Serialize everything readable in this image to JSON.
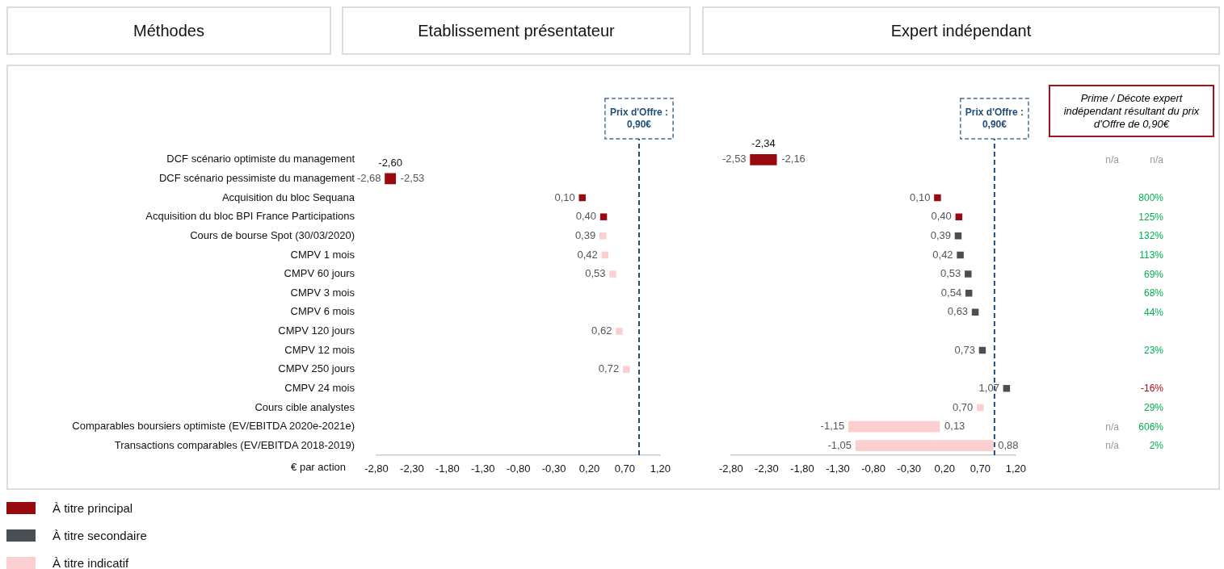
{
  "chart_data": [
    {
      "type": "bar",
      "orientation": "horizontal",
      "title": "Etablissement présentateur",
      "ylabel": "Méthodes",
      "xlabel": "€ par action",
      "legend": "bottom left",
      "categories": [
        "DCF scénario optimiste du management",
        "DCF scénario pessimiste du management",
        "Acquisition du bloc Sequana",
        "Acquisition du bloc BPI France Participations",
        "Cours de bourse Spot (30/03/2020)",
        "CMPV 1 mois",
        "CMPV 60 jours",
        "CMPV 3 mois",
        "CMPV 6 mois",
        "CMPV 120 jours",
        "CMPV 12 mois",
        "CMPV 250 jours",
        "CMPV 24 mois",
        "Cours cible analystes",
        "Comparables boursiers optimiste (EV/EBITDA 2020e-2021e)",
        "Transactions comparables (EV/EBITDA 2018-2019)"
      ],
      "series": [
        {
          "name": "À titre principal",
          "color": "#990a10",
          "base": [
            null,
            -2.68,
            null,
            null,
            null,
            null,
            null,
            null,
            null,
            null,
            null,
            null,
            null,
            null,
            null,
            null
          ],
          "values": [
            null,
            0.15,
            null,
            null,
            null,
            null,
            null,
            null,
            null,
            null,
            null,
            null,
            null,
            null,
            null,
            null
          ]
        },
        {
          "type": "scatter",
          "color": "#990a10",
          "values": [
            null,
            null,
            0.1,
            0.4,
            null,
            null,
            null,
            null,
            null,
            null,
            null,
            null,
            null,
            null,
            null,
            null
          ]
        },
        {
          "name": "À titre secondaire",
          "type": "scatter",
          "color": "#4a4f53",
          "values": [
            null,
            null,
            null,
            null,
            null,
            null,
            null,
            null,
            null,
            null,
            null,
            null,
            null,
            null,
            null,
            null
          ]
        },
        {
          "name": "À titre indicatif",
          "type": "scatter",
          "color": "#fbcfd0",
          "values": [
            null,
            null,
            null,
            null,
            0.39,
            0.42,
            0.53,
            null,
            null,
            0.62,
            null,
            0.72,
            null,
            null,
            null,
            null
          ]
        }
      ],
      "marker": "square",
      "xlim": [
        -2.8,
        1.2
      ],
      "xticks": [
        {
          "value": -2.8,
          "label": "-2,80"
        },
        {
          "value": -2.3,
          "label": "-2,30"
        },
        {
          "value": -1.8,
          "label": "-1,80"
        },
        {
          "value": -1.3,
          "label": "-1,30"
        },
        {
          "value": -0.8,
          "label": "-0,80"
        },
        {
          "value": -0.3,
          "label": "-0,30"
        },
        {
          "value": 0.2,
          "label": "0,20"
        },
        {
          "value": 0.7,
          "label": "0,70"
        },
        {
          "value": 1.2,
          "label": "1,20"
        }
      ],
      "ref_lines": [
        {
          "axis": "x",
          "value": 0.9,
          "label": "Prix d'Offre : 0,90€",
          "color": "#1f4e79",
          "line_style": "dashed"
        }
      ],
      "annotations": [
        "-2,60",
        {
          "text": "-2,68",
          "x": -2.68,
          "y": "DCF scénario pessimiste du management"
        },
        {
          "text": "-2,53",
          "x": -2.53,
          "y": "DCF scénario pessimiste du management"
        },
        {
          "text": "0,10",
          "x": 0.1,
          "y": "Acquisition du bloc Sequana"
        },
        {
          "text": "0,40",
          "x": 0.4,
          "y": "Acquisition du bloc BPI France Participations"
        },
        {
          "text": "0,39",
          "x": 0.39,
          "y": "Cours de bourse Spot (30/03/2020)"
        },
        {
          "text": "0,42",
          "x": 0.42,
          "y": "CMPV 1 mois"
        },
        {
          "text": "0,53",
          "x": 0.53,
          "y": "CMPV 60 jours"
        },
        {
          "text": "0,62",
          "x": 0.62,
          "y": "CMPV 120 jours"
        },
        {
          "text": "0,72",
          "x": 0.72,
          "y": "CMPV 250 jours"
        }
      ]
    },
    {
      "type": "bar",
      "orientation": "horizontal",
      "title": "Expert indépendant",
      "tick_labels": "x",
      "categories": [
        "DCF scénario optimiste du management",
        "DCF scénario pessimiste du management",
        "Acquisition du bloc Sequana",
        "Acquisition du bloc BPI France Participations",
        "Cours de bourse Spot (30/03/2020)",
        "CMPV 1 mois",
        "CMPV 60 jours",
        "CMPV 3 mois",
        "CMPV 6 mois",
        "CMPV 120 jours",
        "CMPV 12 mois",
        "CMPV 250 jours",
        "CMPV 24 mois",
        "Cours cible analystes",
        "Comparables boursiers optimiste (EV/EBITDA 2020e-2021e)",
        "Transactions comparables (EV/EBITDA 2018-2019)"
      ],
      "series": [
        {
          "color": "#990a10",
          "base": [
            -2.53,
            null,
            null,
            null,
            null,
            null,
            null,
            null,
            null,
            null,
            null,
            null,
            null,
            null,
            null,
            null
          ],
          "values": [
            0.37,
            null,
            null,
            null,
            null,
            null,
            null,
            null,
            null,
            null,
            null,
            null,
            null,
            null,
            null,
            null
          ]
        },
        {
          "type": "scatter",
          "color": "#990a10",
          "values": [
            null,
            null,
            0.1,
            0.4,
            null,
            null,
            null,
            null,
            null,
            null,
            null,
            null,
            null,
            null,
            null,
            null
          ]
        },
        {
          "type": "scatter",
          "color": "#4a4f53",
          "values": [
            null,
            null,
            null,
            null,
            0.39,
            0.42,
            0.53,
            0.54,
            0.63,
            null,
            0.73,
            null,
            1.07,
            null,
            null,
            null
          ]
        },
        {
          "color": "#fbcfd0",
          "base": [
            null,
            null,
            null,
            null,
            null,
            null,
            null,
            null,
            null,
            null,
            null,
            null,
            null,
            null,
            -1.15,
            -1.05
          ],
          "values": [
            null,
            null,
            null,
            null,
            null,
            null,
            null,
            null,
            null,
            null,
            null,
            null,
            null,
            null,
            1.28,
            1.93
          ]
        },
        {
          "type": "scatter",
          "color": "#fbcfd0",
          "values": [
            null,
            null,
            null,
            null,
            null,
            null,
            null,
            null,
            null,
            null,
            null,
            null,
            null,
            0.7,
            null,
            null
          ]
        }
      ],
      "marker": "square",
      "xlim": [
        -2.8,
        1.2
      ],
      "xticks": [
        {
          "value": -2.8,
          "label": "-2,80"
        },
        {
          "value": -2.3,
          "label": "-2,30"
        },
        {
          "value": -1.8,
          "label": "-1,80"
        },
        {
          "value": -1.3,
          "label": "-1,30"
        },
        {
          "value": -0.8,
          "label": "-0,80"
        },
        {
          "value": -0.3,
          "label": "-0,30"
        },
        {
          "value": 0.2,
          "label": "0,20"
        },
        {
          "value": 0.7,
          "label": "0,70"
        },
        {
          "value": 1.2,
          "label": "1,20"
        }
      ],
      "ref_lines": [
        {
          "axis": "x",
          "value": 0.9,
          "label": "Prix d'Offre : 0,90€",
          "color": "#1f4e79",
          "line_style": "dashed"
        }
      ],
      "annotations": [
        "-2,34",
        {
          "text": "-2,53",
          "x": -2.53,
          "y": "DCF scénario optimiste du management"
        },
        {
          "text": "-2,16",
          "x": -2.16,
          "y": "DCF scénario optimiste du management"
        },
        {
          "text": "0,10",
          "x": 0.1,
          "y": "Acquisition du bloc Sequana"
        },
        {
          "text": "0,40",
          "x": 0.4,
          "y": "Acquisition du bloc BPI France Participations"
        },
        {
          "text": "0,39",
          "x": 0.39,
          "y": "Cours de bourse Spot (30/03/2020)"
        },
        {
          "text": "0,42",
          "x": 0.42,
          "y": "CMPV 1 mois"
        },
        {
          "text": "0,53",
          "x": 0.53,
          "y": "CMPV 60 jours"
        },
        {
          "text": "0,54",
          "x": 0.54,
          "y": "CMPV 3 mois"
        },
        {
          "text": "0,63",
          "x": 0.63,
          "y": "CMPV 6 mois"
        },
        {
          "text": "0,73",
          "x": 0.73,
          "y": "CMPV 12 mois"
        },
        {
          "text": "1,07",
          "x": 1.07,
          "y": "CMPV 24 mois"
        },
        {
          "text": "0,70",
          "x": 0.7,
          "y": "Cours cible analystes"
        },
        {
          "text": "-1,15",
          "x": -1.15,
          "y": "Comparables boursiers optimiste (EV/EBITDA 2020e-2021e)"
        },
        {
          "text": "0,13",
          "x": 0.13,
          "y": "Comparables boursiers optimiste (EV/EBITDA 2020e-2021e)"
        },
        {
          "text": "-1,05",
          "x": -1.05,
          "y": "Transactions comparables (EV/EBITDA 2018-2019)"
        },
        {
          "text": "0,88",
          "x": 0.88,
          "y": "Transactions comparables (EV/EBITDA 2018-2019)"
        }
      ]
    },
    {
      "type": "other",
      "title": "Prime / Décote expert indépendant résultant du prix d'Offre de 0,90€",
      "cell_labels": [
        [
          "n/a",
          "n/a"
        ],
        [
          null,
          null
        ],
        [
          null,
          "800%"
        ],
        [
          null,
          "125%"
        ],
        [
          null,
          "132%"
        ],
        [
          null,
          "113%"
        ],
        [
          null,
          "69%"
        ],
        [
          null,
          "68%"
        ],
        [
          null,
          "44%"
        ],
        [
          null,
          null
        ],
        [
          null,
          "23%"
        ],
        [
          null,
          null
        ],
        [
          null,
          "-16%"
        ],
        [
          null,
          "29%"
        ],
        [
          "n/a",
          "606%"
        ],
        [
          "n/a",
          "2%"
        ]
      ],
      "colors": [
        "#999999",
        null,
        "#00b050",
        "#00b050",
        "#00b050",
        "#00b050",
        "#00b050",
        "#00b050",
        "#00b050",
        null,
        "#00b050",
        null,
        "#a50f15",
        "#00b050",
        "#00b050",
        "#00b050"
      ]
    }
  ]
}
